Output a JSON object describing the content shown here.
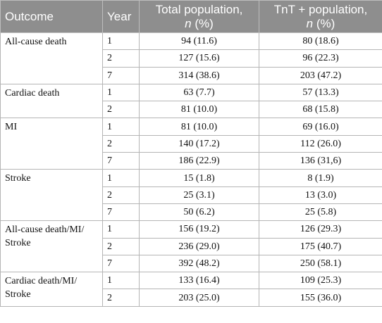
{
  "table": {
    "header": {
      "outcome": "Outcome",
      "year": "Year",
      "total": {
        "text": "Total population,",
        "n": "n",
        "unit": "(%)"
      },
      "tnt": {
        "text": "TnT + population,",
        "n": "n",
        "unit": "(%)"
      }
    },
    "groups": [
      {
        "outcome": "All-cause death",
        "rows": [
          [
            "1",
            "94 (11.6)",
            "80 (18.6)"
          ],
          [
            "2",
            "127 (15.6)",
            "96 (22.3)"
          ],
          [
            "7",
            "314 (38.6)",
            "203 (47.2)"
          ]
        ]
      },
      {
        "outcome": "Cardiac death",
        "rows": [
          [
            "1",
            "63 (7.7)",
            "57 (13.3)"
          ],
          [
            "2",
            "81 (10.0)",
            "68 (15.8)"
          ]
        ]
      },
      {
        "outcome": "MI",
        "rows": [
          [
            "1",
            "81 (10.0)",
            "69 (16.0)"
          ],
          [
            "2",
            "140 (17.2)",
            "112 (26.0)"
          ],
          [
            "7",
            "186 (22.9)",
            "136 (31,6)"
          ]
        ]
      },
      {
        "outcome": "Stroke",
        "rows": [
          [
            "1",
            "15 (1.8)",
            "8 (1.9)"
          ],
          [
            "2",
            "25 (3.1)",
            "13 (3.0)"
          ],
          [
            "7",
            "50 (6.2)",
            "25 (5.8)"
          ]
        ]
      },
      {
        "outcome": "All-cause death/MI/ Stroke",
        "rows": [
          [
            "1",
            "156 (19.2)",
            "126 (29.3)"
          ],
          [
            "2",
            "236 (29.0)",
            "175 (40.7)"
          ],
          [
            "7",
            "392 (48.2)",
            "250 (58.1)"
          ]
        ]
      },
      {
        "outcome": "Cardiac death/MI/ Stroke",
        "rows": [
          [
            "1",
            "133 (16.4)",
            "109 (25.3)"
          ],
          [
            "2",
            "203 (25.0)",
            "155 (36.0)"
          ]
        ]
      }
    ]
  }
}
